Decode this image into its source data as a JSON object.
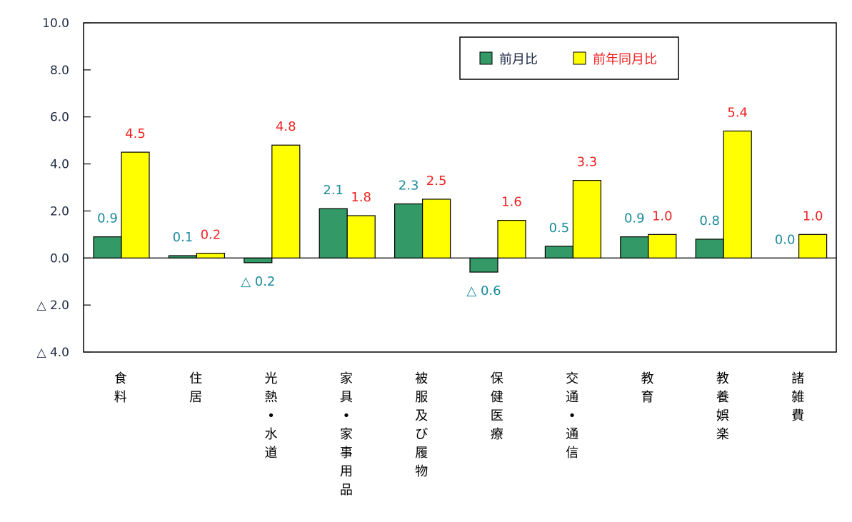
{
  "chart_data": {
    "type": "bar",
    "title": "",
    "xlabel": "",
    "ylabel": "",
    "ylim": [
      -4.0,
      10.0
    ],
    "yticks": [
      10.0,
      8.0,
      6.0,
      4.0,
      2.0,
      0.0,
      -2.0,
      -4.0
    ],
    "ytick_labels": [
      "10.0",
      "8.0",
      "6.0",
      "4.0",
      "2.0",
      "0.0",
      "△ 2.0",
      "△ 4.0"
    ],
    "grid": false,
    "legend_position": "top-right inside",
    "categories": [
      "食料",
      "住居",
      "光熱・水道",
      "家具・家事用品",
      "被服及び履物",
      "保健医療",
      "交通・通信",
      "教育",
      "教養娯楽",
      "諸雑費"
    ],
    "series": [
      {
        "name": "前月比",
        "color": "#339966",
        "label_color": "#1a8a9a",
        "values": [
          0.9,
          0.1,
          -0.2,
          2.1,
          2.3,
          -0.6,
          0.5,
          0.9,
          0.8,
          0.0
        ],
        "labels": [
          "0.9",
          "0.1",
          "△ 0.2",
          "2.1",
          "2.3",
          "△ 0.6",
          "0.5",
          "0.9",
          "0.8",
          "0.0"
        ]
      },
      {
        "name": "前年同月比",
        "color": "#ffff00",
        "label_color": "#ee2222",
        "values": [
          4.5,
          0.2,
          4.8,
          1.8,
          2.5,
          1.6,
          3.3,
          1.0,
          5.4,
          1.0
        ],
        "labels": [
          "4.5",
          "0.2",
          "4.8",
          "1.8",
          "2.5",
          "1.6",
          "3.3",
          "1.0",
          "5.4",
          "1.0"
        ]
      }
    ]
  },
  "legend": {
    "items": [
      {
        "label": "前月比",
        "color": "#339966"
      },
      {
        "label": "前年同月比",
        "color": "#ffff00"
      }
    ]
  }
}
